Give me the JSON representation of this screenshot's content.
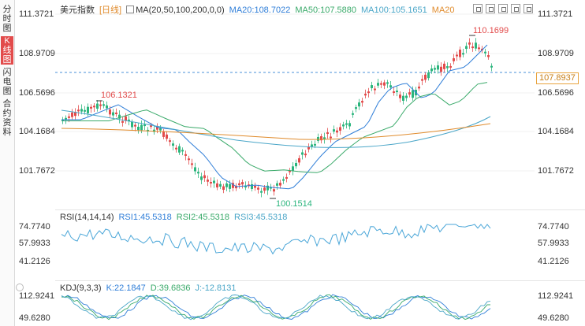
{
  "sidebar": {
    "tabs": [
      {
        "label": "分时图",
        "active": false
      },
      {
        "label": "K线图",
        "active": true
      },
      {
        "label": "闪电图",
        "active": false
      },
      {
        "label": "合约资料",
        "active": false
      }
    ]
  },
  "main": {
    "symbol": "美元指数",
    "period": "[日线]",
    "ma_label": "MA(20,50,100,200,0,0)",
    "ma20": "MA20:108.7022",
    "ma50": "MA50:107.5880",
    "ma100": "MA100:105.1651",
    "ma200": "MA20",
    "price_axis": [
      "111.3721",
      "108.9709",
      "106.5696",
      "104.1684",
      "101.7672"
    ],
    "high_label": "110.1699",
    "high_left_label": "106.1321",
    "low_label": "100.1514",
    "current_price": "107.8937"
  },
  "rsi": {
    "label": "RSI(14,14,14)",
    "rsi1": "RSI1:45.5318",
    "rsi2": "RSI2:45.5318",
    "rsi3": "RSI3:45.5318",
    "axis": [
      "74.7740",
      "57.9933",
      "41.2126"
    ]
  },
  "kdj": {
    "label": "KDJ(9,3,3)",
    "k": "K:22.1847",
    "d": "D:39.6836",
    "j": "J:-12.8131",
    "axis": [
      "112.9241",
      "49.6280"
    ]
  },
  "colors": {
    "up": "#e24b4b",
    "down": "#2bb57d",
    "ma20": "#2f7ed8",
    "ma50": "#3aaa6a",
    "ma100": "#4aa6c8",
    "ma200": "#e08b2c",
    "price_line": "#4a90d9",
    "rsi": "#4aa6d8"
  }
}
